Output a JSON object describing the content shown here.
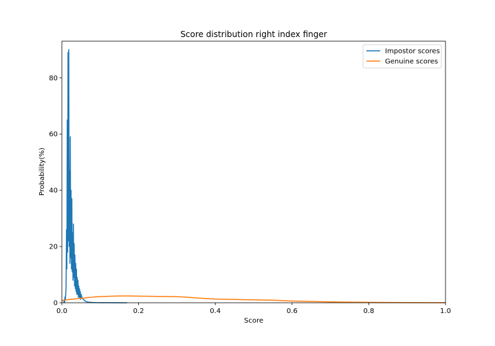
{
  "chart_data": {
    "type": "line",
    "title": "Score distribution right index finger",
    "xlabel": "Score",
    "ylabel": "Probability(%)",
    "xlim": [
      0.0,
      1.0
    ],
    "ylim": [
      0,
      93
    ],
    "xticks": [
      0.0,
      0.2,
      0.4,
      0.6,
      0.8,
      1.0
    ],
    "xtick_labels": [
      "0.0",
      "0.2",
      "0.4",
      "0.6",
      "0.8",
      "1.0"
    ],
    "yticks": [
      0,
      20,
      40,
      60,
      80
    ],
    "ytick_labels": [
      "0",
      "20",
      "40",
      "60",
      "80"
    ],
    "grid": false,
    "legend_position": "top-right",
    "series": [
      {
        "name": "Impostor scores",
        "color": "#1f77b4",
        "x": [
          0.005,
          0.006,
          0.007,
          0.008,
          0.009,
          0.01,
          0.011,
          0.012,
          0.013,
          0.014,
          0.015,
          0.016,
          0.017,
          0.018,
          0.019,
          0.02,
          0.021,
          0.022,
          0.023,
          0.024,
          0.025,
          0.026,
          0.027,
          0.028,
          0.029,
          0.03,
          0.031,
          0.032,
          0.033,
          0.034,
          0.035,
          0.036,
          0.037,
          0.038,
          0.039,
          0.04,
          0.041,
          0.042,
          0.043,
          0.044,
          0.045,
          0.046,
          0.047,
          0.048,
          0.049,
          0.05,
          0.052,
          0.054,
          0.056,
          0.058,
          0.06,
          0.062,
          0.064,
          0.066,
          0.068,
          0.07,
          0.075,
          0.08,
          0.09,
          0.1,
          0.12,
          0.14,
          0.17
        ],
        "values": [
          0,
          1,
          0,
          2,
          1,
          3,
          6,
          26,
          12,
          65,
          18,
          89,
          22,
          90,
          20,
          47,
          14,
          59,
          16,
          40,
          12,
          37,
          11,
          25,
          8,
          28,
          9,
          21,
          6,
          17,
          5,
          14,
          4,
          12,
          3,
          9,
          3,
          8,
          2,
          6,
          2,
          5,
          1.5,
          4,
          1.2,
          3,
          2,
          1.5,
          1.2,
          0.9,
          0.7,
          0.5,
          0.4,
          0.3,
          0.25,
          0.2,
          0.15,
          0.1,
          0.05,
          0.03,
          0.02,
          0.01,
          0
        ]
      },
      {
        "name": "Genuine scores",
        "color": "#ff7f0e",
        "x": [
          0.0,
          0.02,
          0.05,
          0.08,
          0.1,
          0.12,
          0.15,
          0.18,
          0.2,
          0.25,
          0.3,
          0.32,
          0.35,
          0.4,
          0.45,
          0.5,
          0.55,
          0.6,
          0.65,
          0.7,
          0.75,
          0.8,
          0.85,
          0.9,
          0.95,
          1.0
        ],
        "values": [
          0.8,
          1.2,
          1.6,
          2.0,
          2.2,
          2.3,
          2.4,
          2.4,
          2.35,
          2.25,
          2.15,
          2.05,
          1.7,
          1.3,
          1.15,
          1.05,
          0.9,
          0.6,
          0.45,
          0.3,
          0.2,
          0.15,
          0.1,
          0.05,
          0.03,
          0.02
        ]
      }
    ]
  }
}
